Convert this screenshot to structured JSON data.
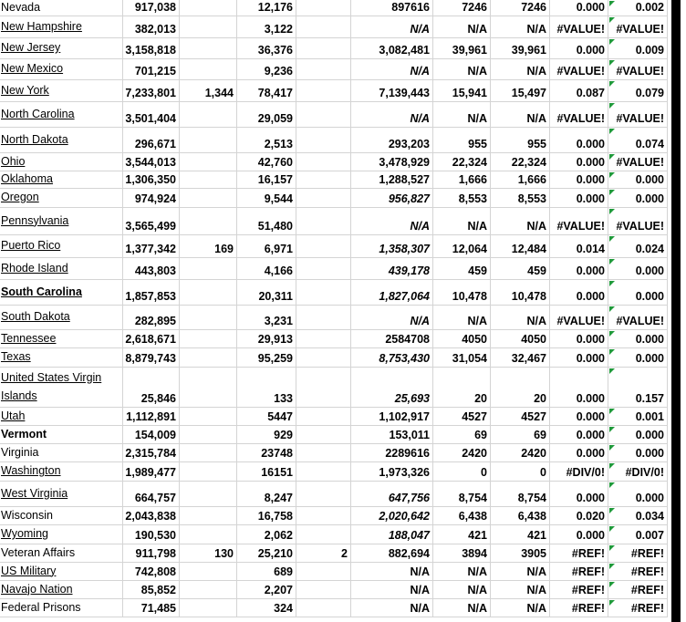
{
  "sheet": {
    "rows": [
      [
        "Nevada",
        "917,038",
        null,
        "12,176",
        null,
        "897616",
        "7246",
        "7246",
        "0.000",
        "0.002"
      ],
      [
        "New Hampshire",
        "382,013",
        null,
        "3,122",
        null,
        "N/A",
        "N/A",
        "N/A",
        "#VALUE!",
        "#VALUE!"
      ],
      [
        "New Jersey",
        "3,158,818",
        null,
        "36,376",
        null,
        "3,082,481",
        "39,961",
        "39,961",
        "0.000",
        "0.009"
      ],
      [
        "New Mexico",
        "701,215",
        null,
        "9,236",
        null,
        "N/A",
        "N/A",
        "N/A",
        "#VALUE!",
        "#VALUE!"
      ],
      [
        "New York",
        "7,233,801",
        "1,344",
        "78,417",
        null,
        "7,139,443",
        "15,941",
        "15,497",
        "0.087",
        "0.079"
      ],
      [
        "North Carolina",
        "3,501,404",
        null,
        "29,059",
        null,
        "N/A",
        "N/A",
        "N/A",
        "#VALUE!",
        "#VALUE!"
      ],
      [
        "North Dakota",
        "296,671",
        null,
        "2,513",
        null,
        "293,203",
        "955",
        "955",
        "0.000",
        "0.074"
      ],
      [
        "Ohio",
        "3,544,013",
        null,
        "42,760",
        null,
        "3,478,929",
        "22,324",
        "22,324",
        "0.000",
        "#VALUE!"
      ],
      [
        "Oklahoma",
        "1,306,350",
        null,
        "16,157",
        null,
        "1,288,527",
        "1,666",
        "1,666",
        "0.000",
        "0.000"
      ],
      [
        "Oregon",
        "974,924",
        null,
        "9,544",
        null,
        "956,827",
        "8,553",
        "8,553",
        "0.000",
        "0.000"
      ],
      [
        "Pennsylvania",
        "3,565,499",
        null,
        "51,480",
        null,
        "N/A",
        "N/A",
        "N/A",
        "#VALUE!",
        "#VALUE!"
      ],
      [
        "Puerto Rico",
        "1,377,342",
        "169",
        "6,971",
        null,
        "1,358,307",
        "12,064",
        "12,484",
        "0.014",
        "0.024"
      ],
      [
        "Rhode Island",
        "443,803",
        null,
        "4,166",
        null,
        "439,178",
        "459",
        "459",
        "0.000",
        "0.000"
      ],
      [
        "South Carolina",
        "1,857,853",
        null,
        "20,311",
        null,
        "1,827,064",
        "10,478",
        "10,478",
        "0.000",
        "0.000"
      ],
      [
        "South Dakota",
        "282,895",
        null,
        "3,231",
        null,
        "N/A",
        "N/A",
        "N/A",
        "#VALUE!",
        "#VALUE!"
      ],
      [
        "Tennessee",
        "2,618,671",
        null,
        "29,913",
        null,
        "2584708",
        "4050",
        "4050",
        "0.000",
        "0.000"
      ],
      [
        "Texas",
        "8,879,743",
        null,
        "95,259",
        null,
        "8,753,430",
        "31,054",
        "32,467",
        "0.000",
        "0.000"
      ],
      [
        "United States Virgin Islands",
        "25,846",
        null,
        "133",
        null,
        "25,693",
        "20",
        "20",
        "0.000",
        "0.157"
      ],
      [
        "Utah",
        "1,112,891",
        null,
        "5447",
        null,
        "1,102,917",
        "4527",
        "4527",
        "0.000",
        "0.001"
      ],
      [
        "Vermont",
        "154,009",
        null,
        "929",
        null,
        "153,011",
        "69",
        "69",
        "0.000",
        "0.000"
      ],
      [
        "Virginia",
        "2,315,784",
        null,
        "23748",
        null,
        "2289616",
        "2420",
        "2420",
        "0.000",
        "0.000"
      ],
      [
        "Washington",
        "1,989,477",
        null,
        "16151",
        null,
        "1,973,326",
        "0",
        "0",
        "#DIV/0!",
        "#DIV/0!"
      ],
      [
        "West Virginia",
        "664,757",
        null,
        "8,247",
        null,
        "647,756",
        "8,754",
        "8,754",
        "0.000",
        "0.000"
      ],
      [
        "Wisconsin",
        "2,043,838",
        null,
        "16,758",
        null,
        "2,020,642",
        "6,438",
        "6,438",
        "0.020",
        "0.034"
      ],
      [
        "Wyoming",
        "190,530",
        null,
        "2,062",
        null,
        "188,047",
        "421",
        "421",
        "0.000",
        "0.007"
      ],
      [
        "Veteran Affairs",
        "911,798",
        "130",
        "25,210",
        "2",
        "882,694",
        "3894",
        "3905",
        "#REF!",
        "#REF!"
      ],
      [
        "US Military",
        "742,808",
        null,
        "689",
        null,
        "N/A",
        "N/A",
        "N/A",
        "#REF!",
        "#REF!"
      ],
      [
        "Navajo Nation",
        "85,852",
        null,
        "2,207",
        null,
        "N/A",
        "N/A",
        "N/A",
        "#REF!",
        "#REF!"
      ],
      [
        "Federal Prisons",
        "71,485",
        null,
        "324",
        null,
        "N/A",
        "N/A",
        "N/A",
        "#REF!",
        "#REF!"
      ]
    ]
  }
}
